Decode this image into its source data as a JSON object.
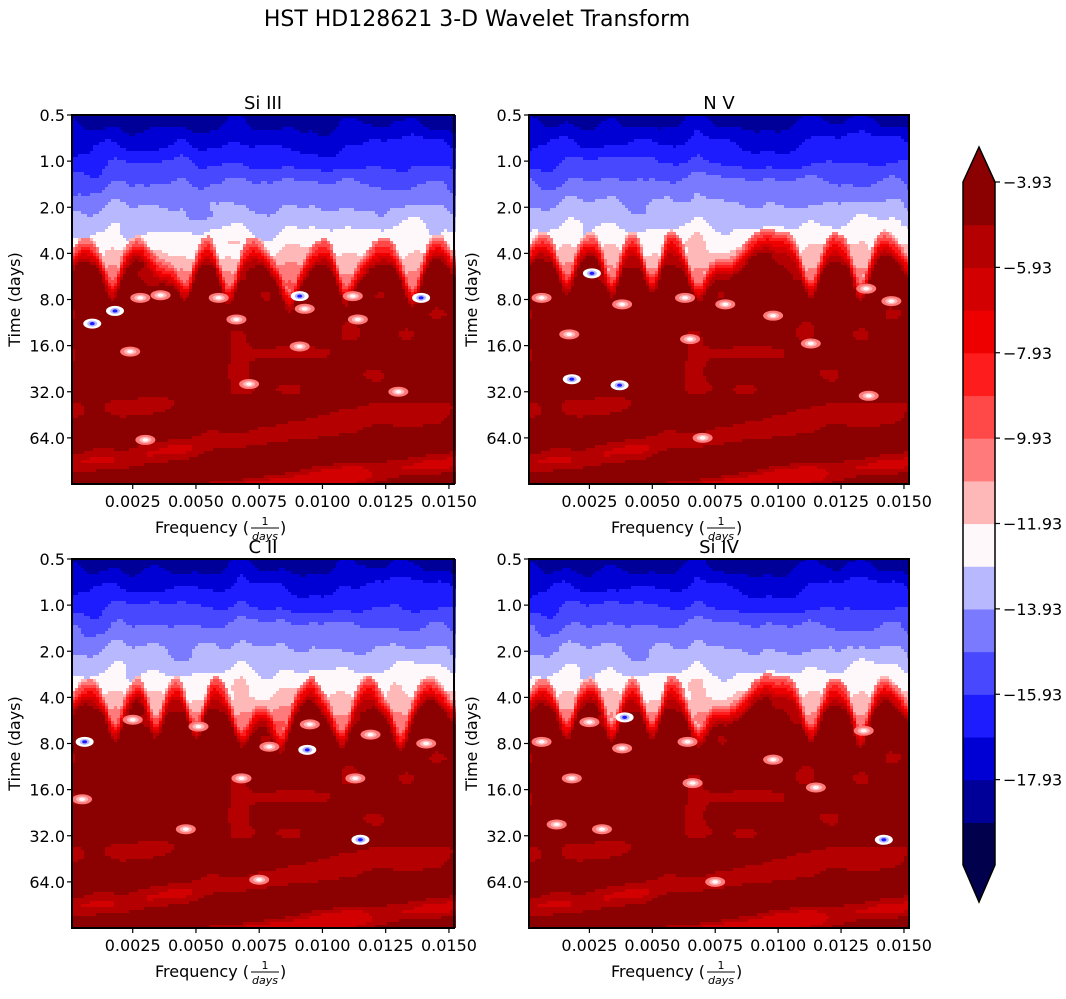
{
  "figure": {
    "suptitle": "HST HD128621 3-D Wavelet Transform"
  },
  "chart_data": [
    {
      "type": "heatmap",
      "title": "Si III",
      "xlabel_prefix": "Frequency (",
      "xlabel_frac_num": "1",
      "xlabel_frac_den": "days",
      "xlabel_suffix": ")",
      "ylabel": "Time (days)",
      "x_ticks": [
        0.0025,
        0.005,
        0.0075,
        0.01,
        0.0125,
        0.015
      ],
      "x_tick_labels": [
        "0.0025",
        "0.0050",
        "0.0075",
        "0.0100",
        "0.0125",
        "0.0150"
      ],
      "xlim": [
        0.0001,
        0.0152
      ],
      "y_ticks": [
        0.5,
        1.0,
        2.0,
        4.0,
        8.0,
        16.0,
        32.0,
        64.0
      ],
      "y_tick_labels": [
        "0.5",
        "1.0",
        "2.0",
        "4.0",
        "8.0",
        "16.0",
        "32.0",
        "64.0"
      ],
      "ylim": [
        0.5,
        128
      ],
      "y_scale": "log2 (inverted, 0.5 at top)",
      "transition_period": 4.5,
      "blue_dips_freq": [
        0.0007,
        0.0026,
        0.0053,
        0.0073,
        0.0101,
        0.0124,
        0.0145
      ],
      "white_peaks_freq": [
        0.0017,
        0.0046,
        0.0063,
        0.0087,
        0.0109,
        0.0136
      ],
      "spots": [
        {
          "f": 0.0009,
          "t": 11.5,
          "kind": "blue"
        },
        {
          "f": 0.0018,
          "t": 9.5,
          "kind": "blue"
        },
        {
          "f": 0.0028,
          "t": 7.8,
          "kind": "white"
        },
        {
          "f": 0.0036,
          "t": 7.5,
          "kind": "white"
        },
        {
          "f": 0.0024,
          "t": 17.5,
          "kind": "white"
        },
        {
          "f": 0.0059,
          "t": 7.8,
          "kind": "white"
        },
        {
          "f": 0.0066,
          "t": 10.8,
          "kind": "white"
        },
        {
          "f": 0.0091,
          "t": 7.6,
          "kind": "blue"
        },
        {
          "f": 0.0093,
          "t": 9.2,
          "kind": "white"
        },
        {
          "f": 0.0091,
          "t": 16.2,
          "kind": "white"
        },
        {
          "f": 0.0112,
          "t": 7.6,
          "kind": "white"
        },
        {
          "f": 0.0114,
          "t": 10.8,
          "kind": "white"
        },
        {
          "f": 0.0139,
          "t": 7.8,
          "kind": "blue"
        },
        {
          "f": 0.0071,
          "t": 28.5,
          "kind": "white"
        },
        {
          "f": 0.013,
          "t": 32,
          "kind": "white"
        },
        {
          "f": 0.003,
          "t": 66,
          "kind": "white"
        }
      ]
    },
    {
      "type": "heatmap",
      "title": "N V",
      "xlabel_prefix": "Frequency (",
      "xlabel_frac_num": "1",
      "xlabel_frac_den": "days",
      "xlabel_suffix": ")",
      "ylabel": "Time (days)",
      "x_ticks": [
        0.0025,
        0.005,
        0.0075,
        0.01,
        0.0125,
        0.015
      ],
      "x_tick_labels": [
        "0.0025",
        "0.0050",
        "0.0075",
        "0.0100",
        "0.0125",
        "0.0150"
      ],
      "xlim": [
        0.0001,
        0.0152
      ],
      "y_ticks": [
        0.5,
        1.0,
        2.0,
        4.0,
        8.0,
        16.0,
        32.0,
        64.0
      ],
      "y_tick_labels": [
        "0.5",
        "1.0",
        "2.0",
        "4.0",
        "8.0",
        "16.0",
        "32.0",
        "64.0"
      ],
      "ylim": [
        0.5,
        128
      ],
      "y_scale": "log2 (inverted, 0.5 at top)",
      "transition_period": 4.2,
      "blue_dips_freq": [
        0.0007,
        0.0025,
        0.0042,
        0.0058,
        0.0092,
        0.0103,
        0.0123,
        0.0142
      ],
      "white_peaks_freq": [
        0.0016,
        0.0034,
        0.005,
        0.0068,
        0.0113,
        0.0133
      ],
      "spots": [
        {
          "f": 0.0006,
          "t": 7.8,
          "kind": "white"
        },
        {
          "f": 0.0026,
          "t": 5.4,
          "kind": "blue"
        },
        {
          "f": 0.0038,
          "t": 8.6,
          "kind": "white"
        },
        {
          "f": 0.0017,
          "t": 13.5,
          "kind": "white"
        },
        {
          "f": 0.0063,
          "t": 7.8,
          "kind": "white"
        },
        {
          "f": 0.0079,
          "t": 8.6,
          "kind": "white"
        },
        {
          "f": 0.0098,
          "t": 10.2,
          "kind": "white"
        },
        {
          "f": 0.0135,
          "t": 6.8,
          "kind": "white"
        },
        {
          "f": 0.0145,
          "t": 8.2,
          "kind": "white"
        },
        {
          "f": 0.0065,
          "t": 14.5,
          "kind": "white"
        },
        {
          "f": 0.0113,
          "t": 15.5,
          "kind": "white"
        },
        {
          "f": 0.0018,
          "t": 26.5,
          "kind": "blue"
        },
        {
          "f": 0.0037,
          "t": 29,
          "kind": "blue"
        },
        {
          "f": 0.0136,
          "t": 34,
          "kind": "white"
        },
        {
          "f": 0.007,
          "t": 64,
          "kind": "white"
        }
      ]
    },
    {
      "type": "heatmap",
      "title": "C II",
      "xlabel_prefix": "Frequency (",
      "xlabel_frac_num": "1",
      "xlabel_frac_den": "days",
      "xlabel_suffix": ")",
      "ylabel": "Time (days)",
      "x_ticks": [
        0.0025,
        0.005,
        0.0075,
        0.01,
        0.0125,
        0.015
      ],
      "x_tick_labels": [
        "0.0025",
        "0.0050",
        "0.0075",
        "0.0100",
        "0.0125",
        "0.0150"
      ],
      "xlim": [
        0.0001,
        0.0152
      ],
      "y_ticks": [
        0.5,
        1.0,
        2.0,
        4.0,
        8.0,
        16.0,
        32.0,
        64.0
      ],
      "y_tick_labels": [
        "0.5",
        "1.0",
        "2.0",
        "4.0",
        "8.0",
        "16.0",
        "32.0",
        "64.0"
      ],
      "ylim": [
        0.5,
        128
      ],
      "y_scale": "log2 (inverted, 0.5 at top)",
      "transition_period": 4.3,
      "blue_dips_freq": [
        0.0008,
        0.0027,
        0.0042,
        0.0058,
        0.0095,
        0.0118,
        0.0142
      ],
      "white_peaks_freq": [
        0.0018,
        0.0034,
        0.005,
        0.0068,
        0.0084,
        0.0108,
        0.0131
      ],
      "spots": [
        {
          "f": 0.0006,
          "t": 7.8,
          "kind": "blue"
        },
        {
          "f": 0.0025,
          "t": 5.6,
          "kind": "white"
        },
        {
          "f": 0.0051,
          "t": 6.2,
          "kind": "white"
        },
        {
          "f": 0.0095,
          "t": 6.0,
          "kind": "white"
        },
        {
          "f": 0.0079,
          "t": 8.4,
          "kind": "white"
        },
        {
          "f": 0.0094,
          "t": 8.8,
          "kind": "blue"
        },
        {
          "f": 0.0119,
          "t": 7.0,
          "kind": "white"
        },
        {
          "f": 0.0141,
          "t": 8.0,
          "kind": "white"
        },
        {
          "f": 0.0005,
          "t": 18.5,
          "kind": "white"
        },
        {
          "f": 0.0068,
          "t": 13.5,
          "kind": "white"
        },
        {
          "f": 0.0113,
          "t": 13.5,
          "kind": "white"
        },
        {
          "f": 0.0046,
          "t": 29,
          "kind": "white"
        },
        {
          "f": 0.0115,
          "t": 34,
          "kind": "blue"
        },
        {
          "f": 0.0075,
          "t": 62,
          "kind": "white"
        }
      ]
    },
    {
      "type": "heatmap",
      "title": "Si IV",
      "xlabel_prefix": "Frequency (",
      "xlabel_frac_num": "1",
      "xlabel_frac_den": "days",
      "xlabel_suffix": ")",
      "ylabel": "Time (days)",
      "x_ticks": [
        0.0025,
        0.005,
        0.0075,
        0.01,
        0.0125,
        0.015
      ],
      "x_tick_labels": [
        "0.0025",
        "0.0050",
        "0.0075",
        "0.0100",
        "0.0125",
        "0.0150"
      ],
      "xlim": [
        0.0001,
        0.0152
      ],
      "y_ticks": [
        0.5,
        1.0,
        2.0,
        4.0,
        8.0,
        16.0,
        32.0,
        64.0
      ],
      "y_tick_labels": [
        "0.5",
        "1.0",
        "2.0",
        "4.0",
        "8.0",
        "16.0",
        "32.0",
        "64.0"
      ],
      "ylim": [
        0.5,
        128
      ],
      "y_scale": "log2 (inverted, 0.5 at top)",
      "transition_period": 4.3,
      "blue_dips_freq": [
        0.0007,
        0.0025,
        0.0042,
        0.0058,
        0.0093,
        0.0104,
        0.0123,
        0.0142
      ],
      "white_peaks_freq": [
        0.0016,
        0.0034,
        0.005,
        0.0068,
        0.0113,
        0.0133
      ],
      "spots": [
        {
          "f": 0.0025,
          "t": 5.8,
          "kind": "white"
        },
        {
          "f": 0.0039,
          "t": 5.4,
          "kind": "blue"
        },
        {
          "f": 0.0006,
          "t": 7.8,
          "kind": "white"
        },
        {
          "f": 0.0038,
          "t": 8.6,
          "kind": "white"
        },
        {
          "f": 0.0064,
          "t": 7.8,
          "kind": "white"
        },
        {
          "f": 0.0098,
          "t": 10.2,
          "kind": "white"
        },
        {
          "f": 0.0134,
          "t": 6.6,
          "kind": "white"
        },
        {
          "f": 0.0018,
          "t": 13.5,
          "kind": "white"
        },
        {
          "f": 0.0066,
          "t": 14.5,
          "kind": "white"
        },
        {
          "f": 0.0115,
          "t": 15.5,
          "kind": "white"
        },
        {
          "f": 0.0012,
          "t": 27,
          "kind": "white"
        },
        {
          "f": 0.003,
          "t": 29,
          "kind": "white"
        },
        {
          "f": 0.0142,
          "t": 34,
          "kind": "blue"
        },
        {
          "f": 0.0075,
          "t": 64,
          "kind": "white"
        }
      ]
    }
  ],
  "colorbar": {
    "levels": [
      -19.93,
      -18.93,
      -17.93,
      -16.93,
      -15.93,
      -14.93,
      -13.93,
      -12.93,
      -11.93,
      -10.93,
      -9.93,
      -8.93,
      -7.93,
      -6.93,
      -5.93,
      -4.93,
      -3.93
    ],
    "tick_values": [
      -17.93,
      -15.93,
      -13.93,
      -11.93,
      -9.93,
      -7.93,
      -5.93,
      -3.93
    ],
    "tick_labels": [
      "−17.93",
      "−15.93",
      "−13.93",
      "−11.93",
      "−9.93",
      "−7.93",
      "−5.93",
      "−3.93"
    ],
    "colors": [
      "#00004c",
      "#000099",
      "#0000d5",
      "#1c1cff",
      "#4848ff",
      "#7a7aff",
      "#b8b8ff",
      "#fff8fb",
      "#ffb8b8",
      "#ff7a7a",
      "#ff4848",
      "#ff1c1c",
      "#ee0000",
      "#d20000",
      "#b40000",
      "#8b0000"
    ],
    "extend": "both"
  }
}
